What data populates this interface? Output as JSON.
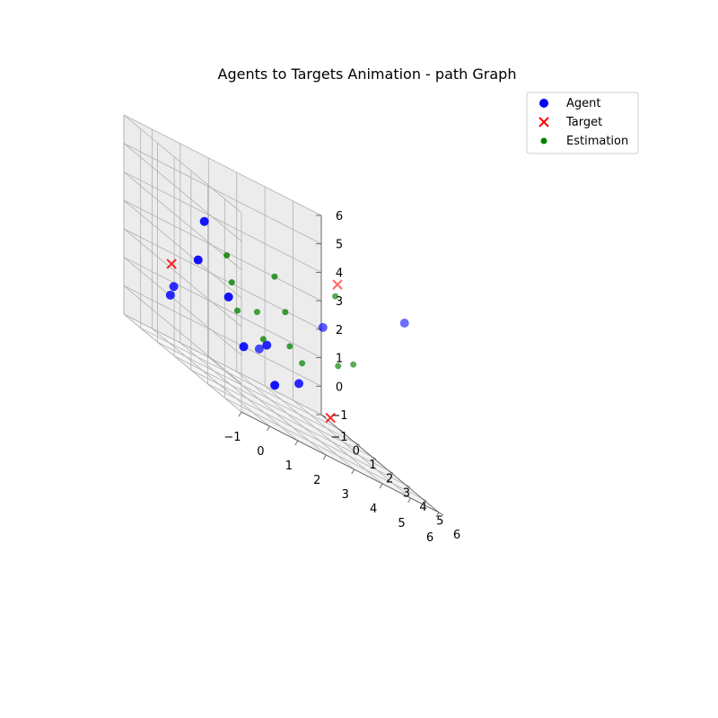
{
  "chart_data": {
    "type": "scatter",
    "projection": "3d",
    "title": "Agents to Targets Animation - path Graph",
    "xlabel": "",
    "ylabel": "",
    "zlabel": "",
    "xlim": [
      -1,
      6
    ],
    "ylim": [
      -1,
      6
    ],
    "zlim": [
      -1,
      6
    ],
    "xticks": [
      "−1",
      "0",
      "1",
      "2",
      "3",
      "4",
      "5",
      "6"
    ],
    "yticks": [
      "−1",
      "0",
      "1",
      "2",
      "3",
      "4",
      "5",
      "6"
    ],
    "zticks": [
      "−1",
      "0",
      "1",
      "2",
      "3",
      "4",
      "5",
      "6"
    ],
    "grid": true,
    "legend_position": "top-right",
    "series": [
      {
        "name": "Agent",
        "marker": "circle",
        "color": "#0000ff",
        "points": [
          [
            0.9,
            0.6,
            4.0
          ],
          [
            0.8,
            0.4,
            2.5
          ],
          [
            -0.6,
            1.3,
            1.3
          ],
          [
            -0.6,
            1.1,
            0.9
          ],
          [
            1.7,
            0.7,
            1.8
          ],
          [
            1.3,
            3.2,
            1.0
          ],
          [
            2.4,
            1.8,
            1.0
          ],
          [
            2.9,
            4.3,
            3.1
          ],
          [
            2.0,
            1.1,
            0.4
          ],
          [
            3.3,
            2.2,
            0.3
          ],
          [
            3.1,
            1.1,
            -0.4
          ],
          [
            4.9,
            5.8,
            5.0
          ]
        ]
      },
      {
        "name": "Target",
        "marker": "x",
        "color": "#ff0000",
        "points": [
          [
            -0.5,
            1.0,
            2.0
          ],
          [
            3.0,
            5.0,
            5.0
          ],
          [
            4.3,
            2.4,
            -0.3
          ]
        ]
      },
      {
        "name": "Estimation",
        "marker": "circle",
        "color": "#008000",
        "points": [
          [
            1.1,
            1.6,
            3.4
          ],
          [
            2.2,
            2.6,
            3.7
          ],
          [
            3.4,
            4.2,
            4.4
          ],
          [
            1.1,
            1.9,
            2.6
          ],
          [
            1.4,
            2.9,
            2.2
          ],
          [
            1.0,
            2.4,
            1.8
          ],
          [
            2.4,
            2.9,
            2.7
          ],
          [
            2.5,
            3.0,
            1.6
          ],
          [
            1.8,
            2.6,
            1.3
          ],
          [
            2.7,
            3.4,
            1.3
          ],
          [
            3.5,
            4.2,
            2.0
          ],
          [
            3.8,
            4.6,
            2.4
          ]
        ]
      }
    ]
  }
}
